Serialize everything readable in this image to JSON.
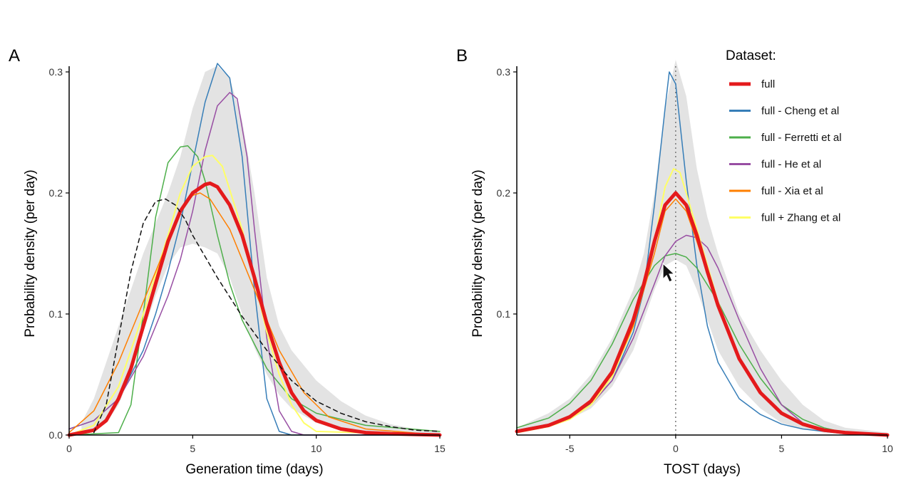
{
  "chart_data": [
    {
      "panel": "A",
      "type": "line",
      "xlabel": "Generation time (days)",
      "ylabel": "Probability density (per day)",
      "xlim": [
        0,
        15
      ],
      "ylim": [
        0,
        0.3
      ],
      "xticks": [
        "0",
        "5",
        "10",
        "15"
      ],
      "yticks": [
        "0.0",
        "0.1",
        "0.2",
        "0.3"
      ],
      "ribbon": {
        "color": "#e3e3e3",
        "x": [
          0.5,
          1,
          1.5,
          2,
          2.5,
          3,
          3.5,
          4,
          4.5,
          5,
          5.5,
          6,
          6.5,
          7,
          7.5,
          8,
          8.5,
          9,
          10,
          11,
          12,
          13,
          14,
          15
        ],
        "lower": [
          0,
          0.003,
          0.01,
          0.025,
          0.05,
          0.085,
          0.115,
          0.14,
          0.155,
          0.158,
          0.155,
          0.15,
          0.13,
          0.1,
          0.072,
          0.05,
          0.033,
          0.022,
          0.01,
          0.005,
          0.002,
          0.001,
          0,
          0
        ],
        "upper": [
          0.01,
          0.03,
          0.06,
          0.09,
          0.12,
          0.15,
          0.175,
          0.2,
          0.23,
          0.27,
          0.3,
          0.305,
          0.295,
          0.26,
          0.2,
          0.13,
          0.09,
          0.07,
          0.045,
          0.028,
          0.016,
          0.009,
          0.005,
          0.003
        ]
      },
      "series": [
        {
          "color": "#377eb8",
          "width": 1.5,
          "dash": "",
          "x": [
            0,
            1,
            2,
            3,
            3.5,
            4,
            4.5,
            5,
            5.5,
            6,
            6.5,
            7,
            7.5,
            8,
            8.5,
            9,
            15
          ],
          "y": [
            0.005,
            0.012,
            0.03,
            0.07,
            0.1,
            0.135,
            0.175,
            0.225,
            0.275,
            0.307,
            0.295,
            0.23,
            0.12,
            0.03,
            0.003,
            0,
            0
          ]
        },
        {
          "color": "#4daf4a",
          "width": 1.5,
          "dash": "",
          "x": [
            0,
            2,
            2.5,
            3,
            3.5,
            4,
            4.5,
            4.8,
            5.2,
            5.5,
            6,
            6.5,
            7,
            8,
            9,
            10,
            12,
            15
          ],
          "y": [
            0,
            0.002,
            0.025,
            0.1,
            0.18,
            0.225,
            0.238,
            0.239,
            0.23,
            0.21,
            0.165,
            0.125,
            0.095,
            0.055,
            0.03,
            0.018,
            0.008,
            0.003
          ]
        },
        {
          "color": "#984ea3",
          "width": 1.5,
          "dash": "",
          "x": [
            0,
            1,
            2,
            3,
            4,
            4.5,
            5,
            5.5,
            6,
            6.5,
            6.8,
            7.2,
            7.5,
            8,
            8.5,
            9,
            9.5,
            15
          ],
          "y": [
            0.005,
            0.012,
            0.03,
            0.065,
            0.115,
            0.145,
            0.185,
            0.235,
            0.272,
            0.283,
            0.278,
            0.23,
            0.17,
            0.08,
            0.02,
            0.003,
            0,
            0
          ]
        },
        {
          "color": "#ffff66",
          "width": 2,
          "dash": "",
          "x": [
            0,
            1,
            2,
            3,
            4,
            4.5,
            5,
            5.5,
            5.8,
            6.2,
            7,
            8,
            8.5,
            9,
            9.5,
            10,
            15
          ],
          "y": [
            0,
            0.008,
            0.04,
            0.1,
            0.165,
            0.2,
            0.222,
            0.23,
            0.231,
            0.222,
            0.17,
            0.085,
            0.05,
            0.025,
            0.01,
            0.003,
            0
          ]
        },
        {
          "color": "#ff7f00",
          "width": 1.5,
          "dash": "",
          "x": [
            0,
            1,
            2,
            3,
            4,
            4.5,
            5,
            5.3,
            5.7,
            6.5,
            7.5,
            8.5,
            9.5,
            10.5,
            12,
            15
          ],
          "y": [
            0.002,
            0.02,
            0.06,
            0.11,
            0.16,
            0.185,
            0.198,
            0.2,
            0.195,
            0.17,
            0.12,
            0.07,
            0.035,
            0.015,
            0.005,
            0
          ]
        },
        {
          "color": "#e41a1c",
          "width": 5,
          "dash": "",
          "x": [
            0,
            1,
            1.5,
            2,
            2.5,
            3,
            3.5,
            4,
            4.5,
            5,
            5.5,
            5.7,
            6,
            6.5,
            7,
            7.5,
            8,
            8.5,
            9,
            9.5,
            10,
            11,
            12,
            13,
            15
          ],
          "y": [
            0,
            0.004,
            0.012,
            0.03,
            0.055,
            0.09,
            0.125,
            0.16,
            0.185,
            0.2,
            0.207,
            0.208,
            0.205,
            0.19,
            0.165,
            0.13,
            0.092,
            0.06,
            0.035,
            0.02,
            0.012,
            0.005,
            0.002,
            0.001,
            0
          ]
        },
        {
          "color": "#111111",
          "width": 1.5,
          "dash": "6,5",
          "x": [
            1,
            1.5,
            2,
            2.5,
            3,
            3.5,
            3.9,
            4.3,
            4.7,
            5,
            6,
            7,
            8,
            9,
            10,
            11,
            12,
            13,
            14,
            15
          ],
          "y": [
            0.002,
            0.025,
            0.08,
            0.135,
            0.175,
            0.193,
            0.195,
            0.19,
            0.178,
            0.165,
            0.13,
            0.098,
            0.07,
            0.045,
            0.028,
            0.018,
            0.011,
            0.007,
            0.004,
            0.003
          ]
        }
      ]
    },
    {
      "panel": "B",
      "type": "line",
      "xlabel": "TOST (days)",
      "ylabel": "Probability density (per day)",
      "xlim": [
        -7.5,
        10
      ],
      "ylim": [
        0,
        0.3
      ],
      "xticks": [
        "-5",
        "0",
        "5",
        "10"
      ],
      "yticks": [
        "0.1",
        "0.2",
        "0.3"
      ],
      "vline": {
        "x": 0,
        "style": "dotted",
        "color": "#777777"
      },
      "ribbon": {
        "color": "#e3e3e3",
        "x": [
          -7.5,
          -6,
          -5,
          -4,
          -3,
          -2,
          -1.5,
          -1,
          -0.5,
          0,
          0.5,
          1,
          1.5,
          2,
          3,
          4,
          5,
          6,
          7,
          8,
          10
        ],
        "lower": [
          0.003,
          0.008,
          0.013,
          0.022,
          0.04,
          0.07,
          0.095,
          0.12,
          0.14,
          0.145,
          0.14,
          0.12,
          0.095,
          0.07,
          0.04,
          0.022,
          0.01,
          0.005,
          0.002,
          0.001,
          0
        ],
        "upper": [
          0.006,
          0.018,
          0.03,
          0.05,
          0.08,
          0.12,
          0.15,
          0.2,
          0.27,
          0.31,
          0.28,
          0.22,
          0.18,
          0.15,
          0.1,
          0.07,
          0.045,
          0.025,
          0.012,
          0.006,
          0.002
        ]
      },
      "series": [
        {
          "color": "#377eb8",
          "width": 1.5,
          "dash": "",
          "x": [
            -7.5,
            -6,
            -5,
            -4,
            -3,
            -2,
            -1.5,
            -1,
            -0.5,
            -0.3,
            0,
            0.5,
            1,
            1.5,
            2,
            3,
            4,
            5,
            6,
            7,
            8,
            10
          ],
          "y": [
            0.004,
            0.009,
            0.015,
            0.026,
            0.045,
            0.085,
            0.12,
            0.19,
            0.27,
            0.3,
            0.29,
            0.21,
            0.14,
            0.09,
            0.06,
            0.03,
            0.017,
            0.009,
            0.005,
            0.003,
            0.001,
            0
          ]
        },
        {
          "color": "#4daf4a",
          "width": 1.5,
          "dash": "",
          "x": [
            -7.5,
            -6,
            -5,
            -4,
            -3,
            -2,
            -1,
            -0.5,
            0,
            0.5,
            1,
            2,
            3,
            4,
            5,
            6,
            7,
            8,
            10
          ],
          "y": [
            0.006,
            0.014,
            0.026,
            0.045,
            0.075,
            0.112,
            0.14,
            0.148,
            0.15,
            0.147,
            0.138,
            0.11,
            0.075,
            0.047,
            0.025,
            0.013,
            0.006,
            0.002,
            0
          ]
        },
        {
          "color": "#984ea3",
          "width": 1.5,
          "dash": "",
          "x": [
            -7.5,
            -6,
            -5,
            -4,
            -3,
            -2,
            -1,
            -0.5,
            0,
            0.5,
            1,
            1.5,
            2,
            3,
            4,
            5,
            6,
            7,
            8,
            10
          ],
          "y": [
            0.002,
            0.007,
            0.013,
            0.025,
            0.045,
            0.08,
            0.125,
            0.148,
            0.16,
            0.165,
            0.163,
            0.155,
            0.138,
            0.095,
            0.055,
            0.025,
            0.01,
            0.004,
            0.001,
            0
          ]
        },
        {
          "color": "#ffff66",
          "width": 2,
          "dash": "",
          "x": [
            -7.5,
            -6,
            -5,
            -4,
            -3,
            -2,
            -1,
            -0.5,
            -0.1,
            0.2,
            0.5,
            1,
            2,
            3,
            4,
            5,
            6,
            7,
            8,
            10
          ],
          "y": [
            0.002,
            0.007,
            0.013,
            0.025,
            0.048,
            0.09,
            0.16,
            0.205,
            0.22,
            0.217,
            0.2,
            0.17,
            0.11,
            0.063,
            0.035,
            0.018,
            0.008,
            0.004,
            0.002,
            0
          ]
        },
        {
          "color": "#ff7f00",
          "width": 1.5,
          "dash": "",
          "x": [
            -7.5,
            -6,
            -5,
            -4,
            -3,
            -2,
            -1,
            -0.5,
            0,
            0.5,
            1,
            2,
            3,
            4,
            5,
            6,
            7,
            8,
            10
          ],
          "y": [
            0.003,
            0.008,
            0.015,
            0.028,
            0.05,
            0.09,
            0.15,
            0.185,
            0.195,
            0.185,
            0.16,
            0.105,
            0.062,
            0.035,
            0.018,
            0.009,
            0.004,
            0.002,
            0
          ]
        },
        {
          "color": "#e41a1c",
          "width": 5,
          "dash": "",
          "x": [
            -7.5,
            -6,
            -5,
            -4,
            -3,
            -2,
            -1.5,
            -1,
            -0.5,
            0,
            0.5,
            1,
            1.5,
            2,
            3,
            4,
            5,
            6,
            7,
            8,
            10
          ],
          "y": [
            0.003,
            0.008,
            0.015,
            0.028,
            0.052,
            0.095,
            0.125,
            0.16,
            0.19,
            0.2,
            0.19,
            0.165,
            0.135,
            0.107,
            0.063,
            0.035,
            0.018,
            0.009,
            0.004,
            0.002,
            0
          ]
        }
      ]
    }
  ],
  "legend": {
    "title": "Dataset:",
    "position": "top-right",
    "entries": [
      {
        "label": "full",
        "color": "#e41a1c",
        "width": 5
      },
      {
        "label": "full - Cheng et al",
        "color": "#377eb8",
        "width": 3
      },
      {
        "label": "full - Ferretti et al",
        "color": "#4daf4a",
        "width": 3
      },
      {
        "label": "full - He et al",
        "color": "#984ea3",
        "width": 3
      },
      {
        "label": "full - Xia et al",
        "color": "#ff7f00",
        "width": 3
      },
      {
        "label": "full + Zhang et al",
        "color": "#ffff66",
        "width": 3
      }
    ]
  },
  "cursor": {
    "name": "mouse-pointer-icon"
  }
}
